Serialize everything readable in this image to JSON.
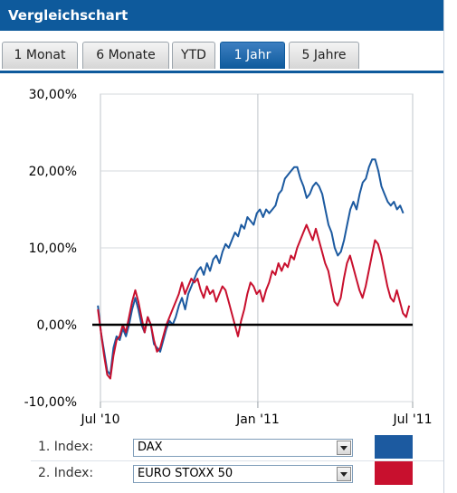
{
  "header": {
    "title": "Vergleichschart"
  },
  "tabs": [
    {
      "label": "1 Monat",
      "active": false
    },
    {
      "label": "6 Monate",
      "active": false
    },
    {
      "label": "YTD",
      "active": false
    },
    {
      "label": "1 Jahr",
      "active": true
    },
    {
      "label": "5 Jahre",
      "active": false
    }
  ],
  "chart_data": {
    "type": "line",
    "x_labels": [
      "Jul '10",
      "Jan '11",
      "Jul '11"
    ],
    "xlim": [
      "2010-07",
      "2011-07"
    ],
    "ylim": [
      -10,
      30
    ],
    "y_ticks": [
      "30,00%",
      "20,00%",
      "10,00%",
      "0,00%",
      "-10,00%"
    ],
    "y_tick_values": [
      30,
      20,
      10,
      0,
      -10
    ],
    "grid": true,
    "baseline": 0,
    "series": [
      {
        "name": "DAX",
        "color": "#1c5aa0",
        "values": [
          2.5,
          -1,
          -3.5,
          -6,
          -6.5,
          -3,
          -1.5,
          -2,
          -0.5,
          -1.5,
          0,
          2,
          3.5,
          2,
          0,
          -1,
          1,
          0,
          -2.5,
          -3,
          -3.5,
          -2,
          -0.5,
          0.5,
          0,
          1,
          2.5,
          3.5,
          2,
          4,
          5,
          6,
          7,
          7.5,
          6.5,
          8,
          7,
          8.5,
          9,
          8,
          9.5,
          10.5,
          10,
          11,
          12,
          11.5,
          13,
          12.5,
          14,
          13.5,
          13,
          14.5,
          15,
          14,
          15,
          14.5,
          15,
          15.5,
          17,
          17.5,
          19,
          19.5,
          20,
          20.5,
          20.5,
          19,
          18,
          16.5,
          17,
          18,
          18.5,
          18,
          17,
          15,
          13,
          12,
          10,
          9,
          9.5,
          11,
          13,
          15,
          16,
          15,
          17,
          18.5,
          19,
          20.5,
          21.5,
          21.5,
          20,
          18,
          17,
          16,
          15.5,
          16,
          15,
          15.5,
          14.5
        ],
        "x_start": "2010-06-28",
        "x_end": "2011-06-20"
      },
      {
        "name": "EURO STOXX 50",
        "color": "#c8102e",
        "values": [
          2,
          -1,
          -4,
          -6.5,
          -7,
          -4,
          -2,
          -1.5,
          0,
          -1,
          1,
          3,
          4.5,
          3,
          1,
          -1,
          1,
          0,
          -2,
          -3.5,
          -3,
          -1.5,
          0,
          1,
          2,
          3,
          4,
          5.5,
          4,
          5,
          6,
          5.5,
          6,
          4.5,
          3.5,
          5,
          4,
          4.5,
          3,
          4,
          5,
          4.5,
          3,
          1.5,
          0,
          -1.5,
          0.5,
          2,
          4,
          5.5,
          5,
          4,
          4.5,
          3,
          4.5,
          5.5,
          7,
          6.5,
          8,
          7,
          8,
          7.5,
          9,
          8.5,
          10,
          11,
          12,
          13,
          12,
          11,
          12.5,
          11,
          9.5,
          8,
          7,
          5,
          3,
          2.5,
          3.5,
          6,
          8,
          9,
          7.5,
          6,
          4.5,
          3.5,
          5,
          7,
          9,
          11,
          10.5,
          9,
          7,
          5,
          3.5,
          3,
          4.5,
          3,
          1.5,
          1,
          2.5
        ],
        "x_start": "2010-06-28",
        "x_end": "2011-06-27"
      }
    ]
  },
  "selectors": [
    {
      "label": "1. Index:",
      "value": "DAX",
      "color": "#1c5aa0"
    },
    {
      "label": "2. Index:",
      "value": "EURO STOXX 50",
      "color": "#c8102e"
    }
  ]
}
